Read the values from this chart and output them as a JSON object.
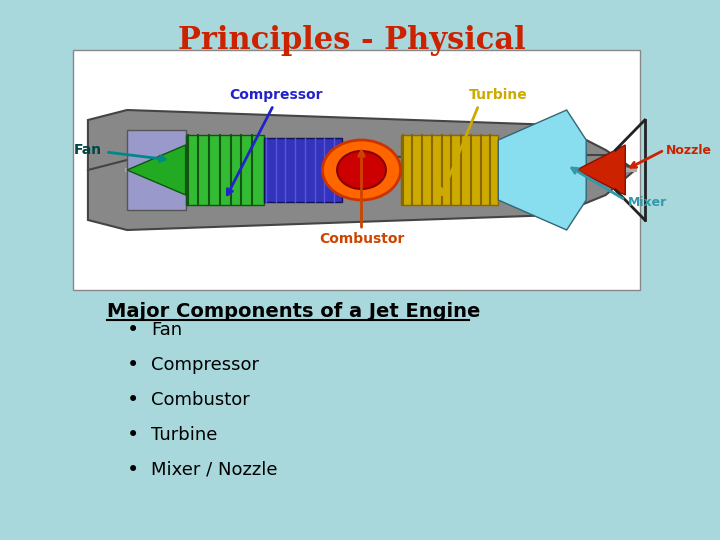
{
  "title": "Principles - Physical",
  "title_color": "#CC2200",
  "title_fontsize": 22,
  "background_color": "#A8D8DC",
  "image_box_color": "#FFFFFF",
  "heading": "Major Components of a Jet Engine",
  "heading_fontsize": 14,
  "bullet_items": [
    "Fan",
    "Compressor",
    "Combustor",
    "Turbine",
    "Mixer / Nozzle"
  ],
  "bullet_fontsize": 13,
  "bullet_color": "#000000",
  "heading_color": "#000000"
}
